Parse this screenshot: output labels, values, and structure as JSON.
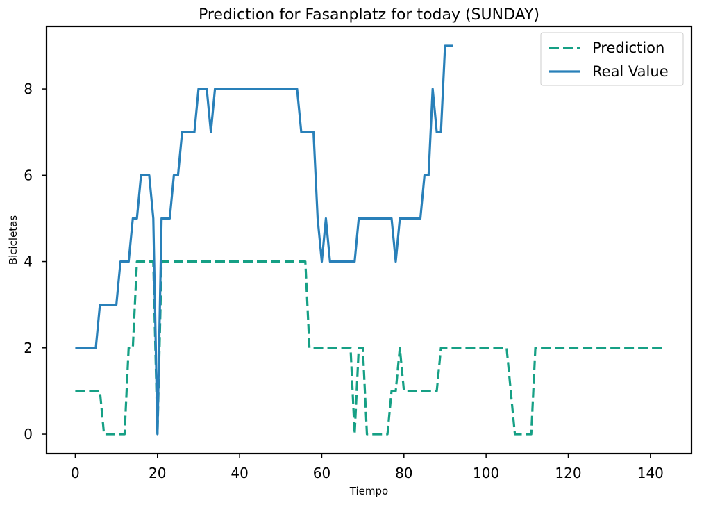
{
  "chart_data": {
    "type": "line",
    "title": "Prediction for Fasanplatz for today (SUNDAY)",
    "xlabel": "Tiempo",
    "ylabel": "Bicicletas",
    "xlim": [
      -7,
      150
    ],
    "ylim": [
      -0.45,
      9.45
    ],
    "xticks": [
      0,
      20,
      40,
      60,
      80,
      100,
      120,
      140
    ],
    "yticks": [
      0,
      2,
      4,
      6,
      8
    ],
    "grid": false,
    "legend": "top-right",
    "series": [
      {
        "name": "Prediction",
        "color": "#16a085",
        "style": "dashed",
        "points": [
          [
            0,
            1
          ],
          [
            6,
            1
          ],
          [
            7,
            0
          ],
          [
            12,
            0
          ],
          [
            13,
            2
          ],
          [
            14,
            2
          ],
          [
            15,
            4
          ],
          [
            19,
            4
          ],
          [
            20,
            0
          ],
          [
            21,
            4
          ],
          [
            56,
            4
          ],
          [
            57,
            2
          ],
          [
            67,
            2
          ],
          [
            68,
            0
          ],
          [
            69,
            2
          ],
          [
            70,
            2
          ],
          [
            71,
            0
          ],
          [
            76,
            0
          ],
          [
            77,
            1
          ],
          [
            78,
            1
          ],
          [
            79,
            2
          ],
          [
            80,
            1
          ],
          [
            88,
            1
          ],
          [
            89,
            2
          ],
          [
            105,
            2
          ],
          [
            107,
            0
          ],
          [
            111,
            0
          ],
          [
            112,
            2
          ],
          [
            143,
            2
          ]
        ]
      },
      {
        "name": "Real Value",
        "color": "#2980b9",
        "style": "solid",
        "points": [
          [
            0,
            2
          ],
          [
            5,
            2
          ],
          [
            6,
            3
          ],
          [
            10,
            3
          ],
          [
            11,
            4
          ],
          [
            13,
            4
          ],
          [
            14,
            5
          ],
          [
            15,
            5
          ],
          [
            16,
            6
          ],
          [
            18,
            6
          ],
          [
            19,
            5
          ],
          [
            20,
            0
          ],
          [
            21,
            5
          ],
          [
            23,
            5
          ],
          [
            24,
            6
          ],
          [
            25,
            6
          ],
          [
            26,
            7
          ],
          [
            29,
            7
          ],
          [
            30,
            8
          ],
          [
            32,
            8
          ],
          [
            33,
            7
          ],
          [
            34,
            8
          ],
          [
            54,
            8
          ],
          [
            55,
            7
          ],
          [
            58,
            7
          ],
          [
            59,
            5
          ],
          [
            60,
            4
          ],
          [
            61,
            5
          ],
          [
            62,
            4
          ],
          [
            68,
            4
          ],
          [
            69,
            5
          ],
          [
            77,
            5
          ],
          [
            78,
            4
          ],
          [
            79,
            5
          ],
          [
            84,
            5
          ],
          [
            85,
            6
          ],
          [
            86,
            6
          ],
          [
            87,
            8
          ],
          [
            88,
            7
          ],
          [
            89,
            7
          ],
          [
            90,
            9
          ],
          [
            92,
            9
          ]
        ]
      }
    ]
  }
}
